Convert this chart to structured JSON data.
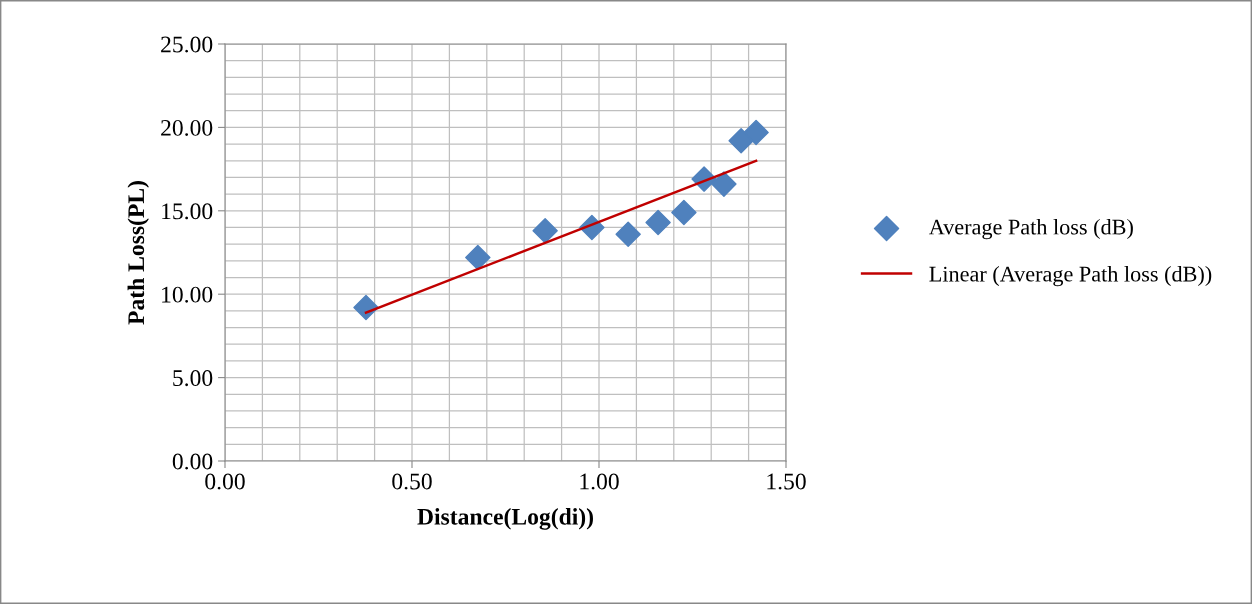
{
  "chart_data": {
    "type": "scatter",
    "xlabel": "Distance(Log(di))",
    "ylabel": "Path Loss(PL)",
    "xlim": [
      0,
      1.5
    ],
    "xticks": [
      {
        "value": 0,
        "label": "0.00"
      },
      {
        "value": 0.5,
        "label": "0.50"
      },
      {
        "value": 1,
        "label": "1.00"
      },
      {
        "value": 1.5,
        "label": "1.50"
      }
    ],
    "ylim": [
      0,
      25
    ],
    "yticks": [
      {
        "value": 0,
        "label": "0.00"
      },
      {
        "value": 5,
        "label": "5.00"
      },
      {
        "value": 10,
        "label": "10.00"
      },
      {
        "value": 15,
        "label": "15.00"
      },
      {
        "value": 20,
        "label": "20.00"
      },
      {
        "value": 25,
        "label": "25.00"
      }
    ],
    "grid": true,
    "legend": "right",
    "series": [
      {
        "name": "Average Path loss (dB)",
        "marker": "diamond",
        "color": "#4f81bd",
        "x": [
          0.377,
          0.676,
          0.856,
          0.981,
          1.078,
          1.158,
          1.227,
          1.281,
          1.334,
          1.38,
          1.42
        ],
        "values": [
          9.2,
          12.2,
          13.8,
          14.0,
          13.6,
          14.3,
          14.9,
          16.9,
          16.6,
          19.2,
          19.7
        ]
      },
      {
        "name": "Linear (Average Path loss (dB))",
        "type": "line",
        "marker": "none",
        "line_style": "solid",
        "color": "#c00000",
        "x": [
          0.377,
          1.42
        ],
        "values": [
          8.9,
          18.0
        ]
      }
    ]
  }
}
